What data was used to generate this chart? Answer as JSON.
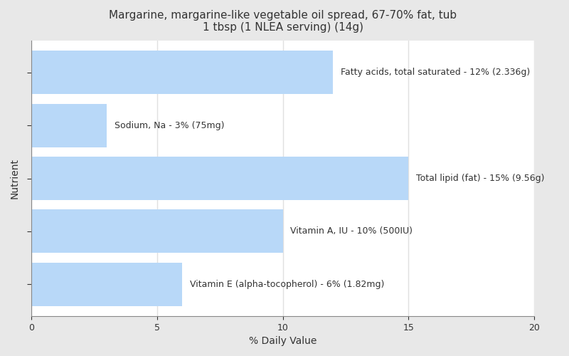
{
  "title": "Margarine, margarine-like vegetable oil spread, 67-70% fat, tub\n1 tbsp (1 NLEA serving) (14g)",
  "xlabel": "% Daily Value",
  "ylabel": "Nutrient",
  "background_color": "#e8e8e8",
  "plot_background_color": "#ffffff",
  "bar_color": "#b8d8f8",
  "xlim": [
    0,
    20
  ],
  "nutrients": [
    "Fatty acids, total saturated - 12% (2.336g)",
    "Sodium, Na - 3% (75mg)",
    "Total lipid (fat) - 15% (9.56g)",
    "Vitamin A, IU - 10% (500IU)",
    "Vitamin E (alpha-tocopherol) - 6% (1.82mg)"
  ],
  "values": [
    12,
    3,
    15,
    10,
    6
  ],
  "title_fontsize": 11,
  "axis_label_fontsize": 10,
  "tick_fontsize": 9,
  "bar_label_fontsize": 9,
  "label_color": "#333333",
  "grid_color": "#e0e0e0",
  "xticks": [
    0,
    5,
    10,
    15,
    20
  ],
  "bar_height": 0.82
}
